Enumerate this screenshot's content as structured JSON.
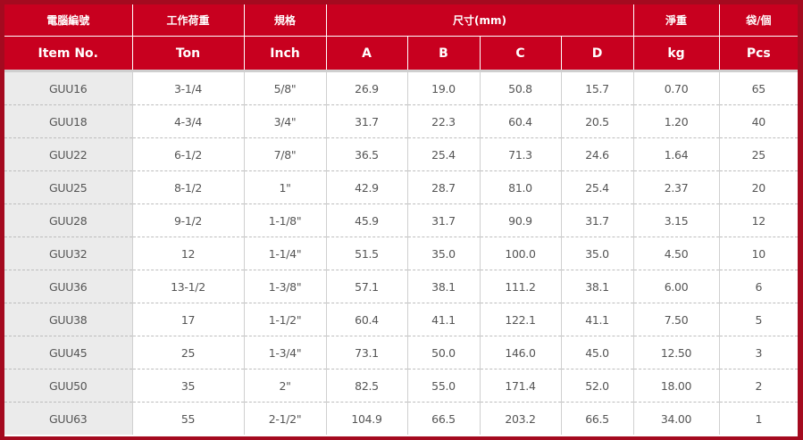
{
  "colors": {
    "header": "#c8001f",
    "frame": "#a40a1f",
    "item_column": "#ebebeb"
  },
  "header_row1": {
    "item": "電腦編號",
    "ton": "工作荷重",
    "inch": "規格",
    "size": "尺寸(mm)",
    "weight": "淨重",
    "pcs": "袋/個"
  },
  "header_row2": [
    "Item No.",
    "Ton",
    "Inch",
    "A",
    "B",
    "C",
    "D",
    "kg",
    "Pcs"
  ],
  "rows": [
    [
      "GUU16",
      "3-1/4",
      "5/8\"",
      "26.9",
      "19.0",
      "50.8",
      "15.7",
      "0.70",
      "65"
    ],
    [
      "GUU18",
      "4-3/4",
      "3/4\"",
      "31.7",
      "22.3",
      "60.4",
      "20.5",
      "1.20",
      "40"
    ],
    [
      "GUU22",
      "6-1/2",
      "7/8\"",
      "36.5",
      "25.4",
      "71.3",
      "24.6",
      "1.64",
      "25"
    ],
    [
      "GUU25",
      "8-1/2",
      "1\"",
      "42.9",
      "28.7",
      "81.0",
      "25.4",
      "2.37",
      "20"
    ],
    [
      "GUU28",
      "9-1/2",
      "1-1/8\"",
      "45.9",
      "31.7",
      "90.9",
      "31.7",
      "3.15",
      "12"
    ],
    [
      "GUU32",
      "12",
      "1-1/4\"",
      "51.5",
      "35.0",
      "100.0",
      "35.0",
      "4.50",
      "10"
    ],
    [
      "GUU36",
      "13-1/2",
      "1-3/8\"",
      "57.1",
      "38.1",
      "111.2",
      "38.1",
      "6.00",
      "6"
    ],
    [
      "GUU38",
      "17",
      "1-1/2\"",
      "60.4",
      "41.1",
      "122.1",
      "41.1",
      "7.50",
      "5"
    ],
    [
      "GUU45",
      "25",
      "1-3/4\"",
      "73.1",
      "50.0",
      "146.0",
      "45.0",
      "12.50",
      "3"
    ],
    [
      "GUU50",
      "35",
      "2\"",
      "82.5",
      "55.0",
      "171.4",
      "52.0",
      "18.00",
      "2"
    ],
    [
      "GUU63",
      "55",
      "2-1/2\"",
      "104.9",
      "66.5",
      "203.2",
      "66.5",
      "34.00",
      "1"
    ]
  ]
}
